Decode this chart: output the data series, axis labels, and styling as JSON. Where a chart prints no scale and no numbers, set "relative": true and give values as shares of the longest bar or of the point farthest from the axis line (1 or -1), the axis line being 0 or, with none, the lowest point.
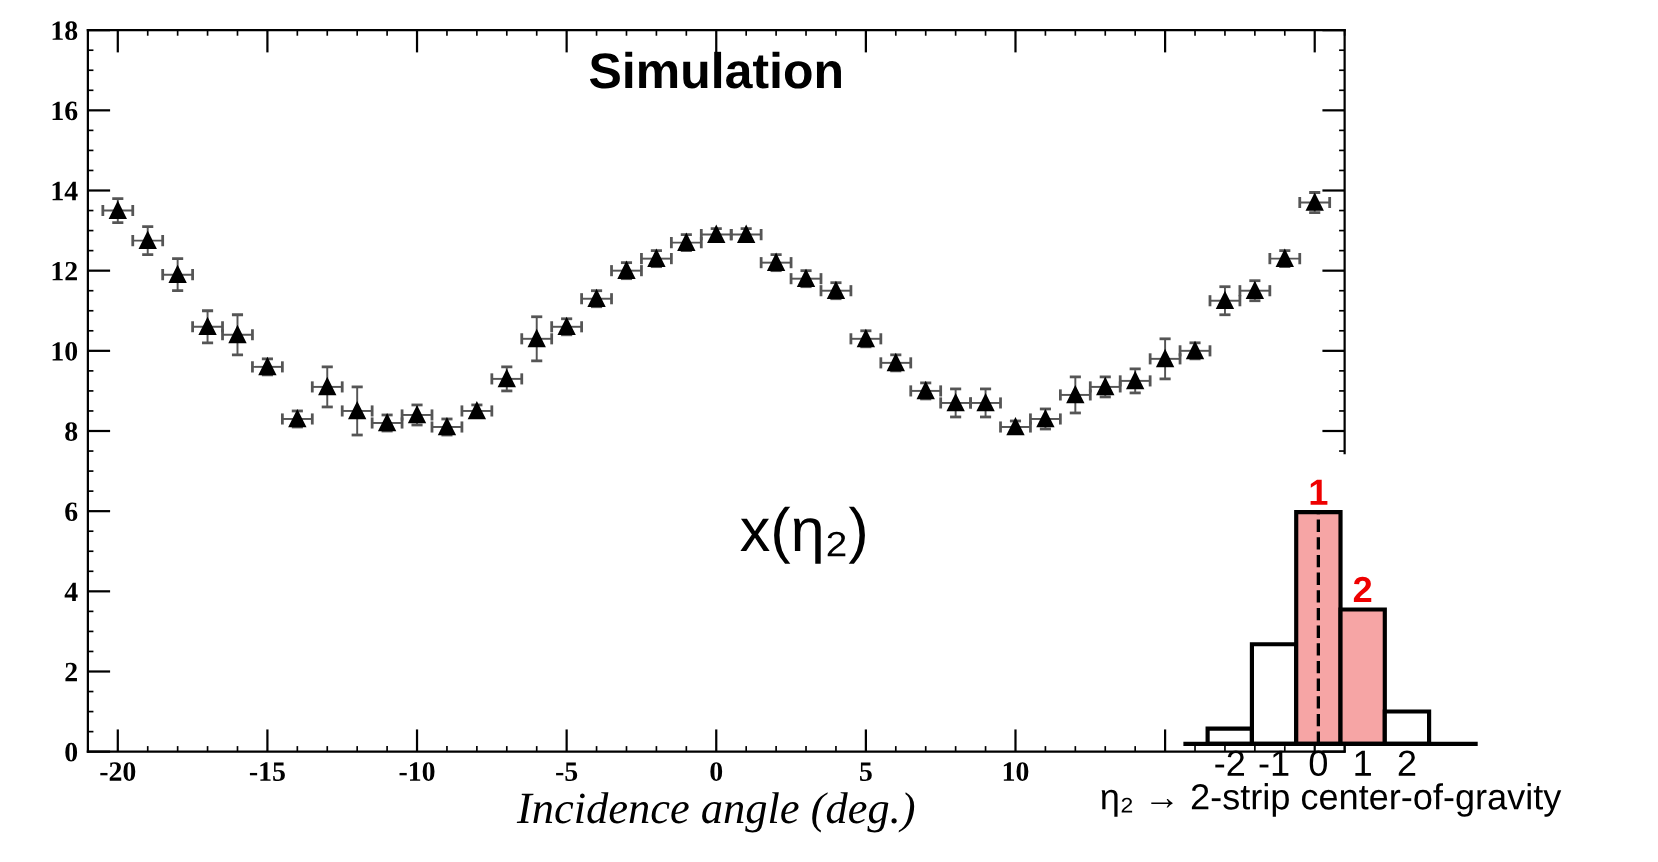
{
  "chart_data": [
    {
      "type": "scatter",
      "title": "Simulation",
      "xlabel": "Incidence angle (deg.)",
      "annotations": [
        "x(η₂)"
      ],
      "x": [
        -20,
        -19,
        -18,
        -17,
        -16,
        -15,
        -14,
        -13,
        -12,
        -11,
        -10,
        -9,
        -8,
        -7,
        -6,
        -5,
        -4,
        -3,
        -2,
        -1,
        0,
        1,
        2,
        3,
        4,
        5,
        6,
        7,
        8,
        9,
        10,
        11,
        12,
        13,
        14,
        15,
        16,
        17,
        18,
        19,
        20
      ],
      "series": [
        {
          "color": "#000000",
          "values": [
            13.5,
            12.75,
            11.9,
            10.6,
            10.4,
            9.6,
            8.3,
            9.1,
            8.5,
            8.2,
            8.4,
            8.1,
            8.5,
            9.3,
            10.3,
            10.6,
            11.3,
            12.0,
            12.3,
            12.7,
            12.9,
            12.9,
            12.2,
            11.8,
            11.5,
            10.3,
            9.7,
            9.0,
            8.7,
            8.7,
            8.1,
            8.3,
            8.9,
            9.1,
            9.25,
            9.8,
            10.0,
            11.25,
            11.5,
            12.3,
            13.7
          ],
          "errors": [
            0.3,
            0.35,
            0.4,
            0.4,
            0.5,
            0.2,
            0.2,
            0.5,
            0.6,
            0.2,
            0.25,
            0.2,
            0.15,
            0.3,
            0.55,
            0.2,
            0.2,
            0.2,
            0.2,
            0.2,
            0.15,
            0.15,
            0.2,
            0.2,
            0.2,
            0.2,
            0.2,
            0.2,
            0.35,
            0.35,
            0.15,
            0.25,
            0.45,
            0.25,
            0.3,
            0.5,
            0.2,
            0.35,
            0.25,
            0.2,
            0.25
          ],
          "xerrors": [
            0.5,
            0.5,
            0.5,
            0.5,
            0.5,
            0.5,
            0.5,
            0.5,
            0.5,
            0.5,
            0.5,
            0.5,
            0.5,
            0.5,
            0.5,
            0.5,
            0.5,
            0.5,
            0.5,
            0.5,
            0.5,
            0.5,
            0.5,
            0.5,
            0.5,
            0.5,
            0.5,
            0.5,
            0.5,
            0.5,
            0.5,
            0.5,
            0.5,
            0.5,
            0.5,
            0.5,
            0.5,
            0.5,
            0.5,
            0.5,
            0.5
          ]
        }
      ],
      "marker": "triangle",
      "grid": false,
      "xlim": [
        -21,
        21
      ],
      "xticks": [
        -20,
        -15,
        -10,
        -5,
        0,
        5,
        10,
        {
          "value": 15,
          "label": null
        },
        {
          "value": 20,
          "label": null
        }
      ],
      "ylim": [
        0,
        18
      ],
      "yticks": [
        0,
        2,
        4,
        6,
        8,
        10,
        12,
        14,
        16,
        18
      ]
    },
    {
      "type": "bar",
      "relative": true,
      "xlabel": "η₂ → 2-strip center-of-gravity",
      "x": [
        -2,
        -1,
        0,
        1,
        2
      ],
      "values": [
        0.066,
        0.43,
        1,
        0.58,
        0.14
      ],
      "colors": [
        "#ffffff",
        "#ffffff",
        "#f6a5a5",
        "#f6a5a5",
        "#ffffff"
      ],
      "xlim": [
        -3,
        3.55
      ],
      "xticks": [
        -2,
        -1,
        0,
        1,
        2
      ],
      "annotations": [
        {
          "text": "1",
          "x": 0,
          "y": 1
        },
        {
          "text": "2",
          "x": 1,
          "y": 0.58
        }
      ],
      "ref_lines": [
        {
          "axis": "x",
          "value": 0,
          "line_style": "dashed",
          "color": "#000000"
        }
      ]
    }
  ]
}
